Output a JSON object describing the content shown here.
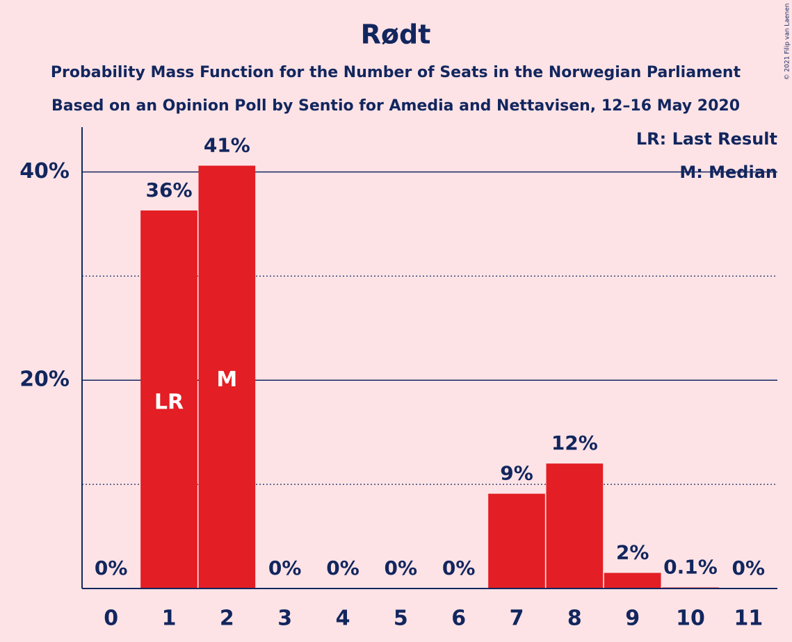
{
  "chart_data": {
    "type": "bar",
    "title": "Rødt",
    "subtitle": [
      "Probability Mass Function for the Number of Seats in the Norwegian Parliament",
      "Based on an Opinion Poll by Sentio for Amedia and Nettavisen, 12–16 May 2020"
    ],
    "categories": [
      "0",
      "1",
      "2",
      "3",
      "4",
      "5",
      "6",
      "7",
      "8",
      "9",
      "10",
      "11"
    ],
    "values": [
      0,
      36.3,
      40.6,
      0,
      0,
      0,
      0,
      9.1,
      12.0,
      1.5,
      0.1,
      0
    ],
    "value_labels": [
      "0%",
      "36%",
      "41%",
      "0%",
      "0%",
      "0%",
      "0%",
      "9%",
      "12%",
      "2%",
      "0.1%",
      "0%"
    ],
    "color": "#e31e24",
    "ylim": [
      0,
      44.3
    ],
    "yticks": [
      {
        "value": 20,
        "label": "20%"
      },
      {
        "value": 40,
        "label": "40%"
      }
    ],
    "minor_yticks": [
      10,
      30
    ],
    "grid": true,
    "marker_labels": [
      {
        "category": "1",
        "label": "LR"
      },
      {
        "category": "2",
        "label": "M"
      }
    ],
    "legend": [
      "LR: Last Result",
      "M: Median"
    ],
    "legend_position": "upper right",
    "copyright": "© 2021 Filip van Laenen"
  }
}
